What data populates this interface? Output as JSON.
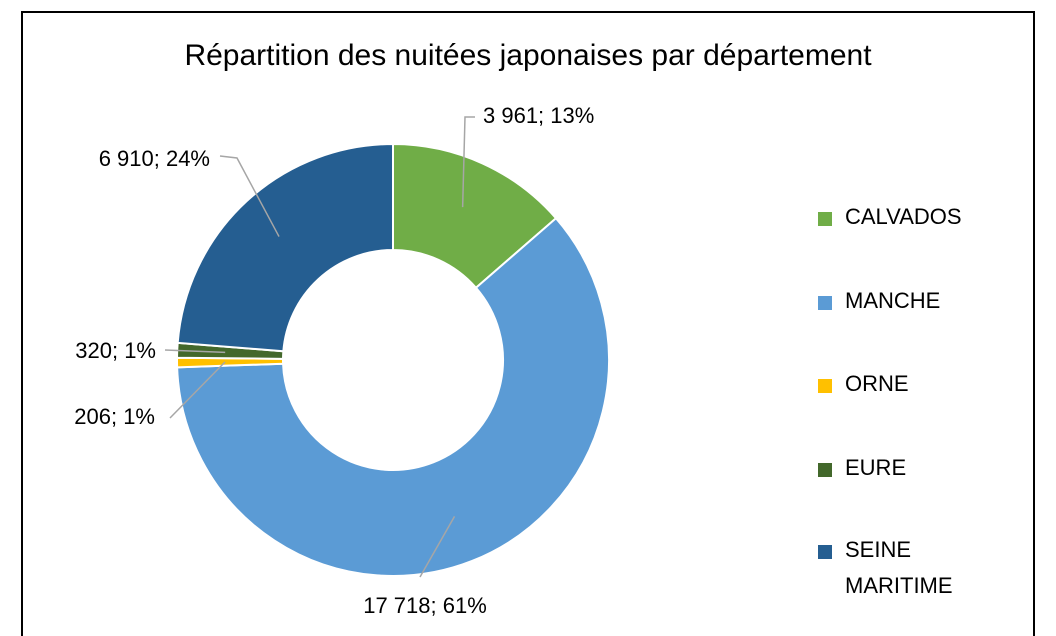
{
  "chart_data": {
    "type": "donut",
    "title": "Répartition des nuitées japonaises par département",
    "categories": [
      "CALVADOS",
      "MANCHE",
      "ORNE",
      "EURE",
      "SEINE MARITIME"
    ],
    "values": [
      3961,
      17718,
      206,
      320,
      6910
    ],
    "value_labels": [
      "3 961; 13%",
      "17 718; 61%",
      "206; 1%",
      "320; 1%",
      "6 910; 24%"
    ],
    "colors": [
      "#70ad47",
      "#5b9bd5",
      "#ffc000",
      "#43682b",
      "#255e91"
    ],
    "legend": "right"
  }
}
